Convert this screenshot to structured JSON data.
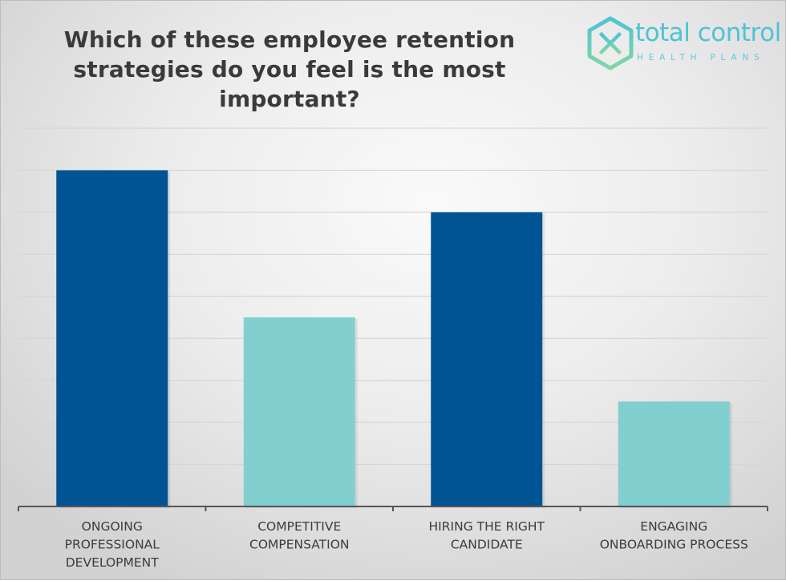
{
  "chart_data": {
    "type": "bar",
    "title": "Which of these employee retention strategies do you feel is the most important?",
    "categories": [
      [
        "ONGOING",
        "PROFESSIONAL",
        "DEVELOPMENT"
      ],
      [
        "COMPETITIVE",
        "COMPENSATION"
      ],
      [
        "HIRING THE RIGHT",
        "CANDIDATE"
      ],
      [
        "ENGAGING",
        "ONBOARDING PROCESS"
      ]
    ],
    "values": [
      8,
      4.5,
      7,
      2.5
    ],
    "colors": [
      "#005494",
      "#82cfd0",
      "#005494",
      "#82cfd0"
    ],
    "ylim": [
      0,
      9
    ],
    "y_tick_step": 1,
    "y_tick_labels_shown": false,
    "grid": true,
    "xlabel": "",
    "ylabel": ""
  },
  "logo": {
    "name": "total control",
    "tagline": "HEALTH PLANS",
    "color": "#4ec3d6"
  }
}
